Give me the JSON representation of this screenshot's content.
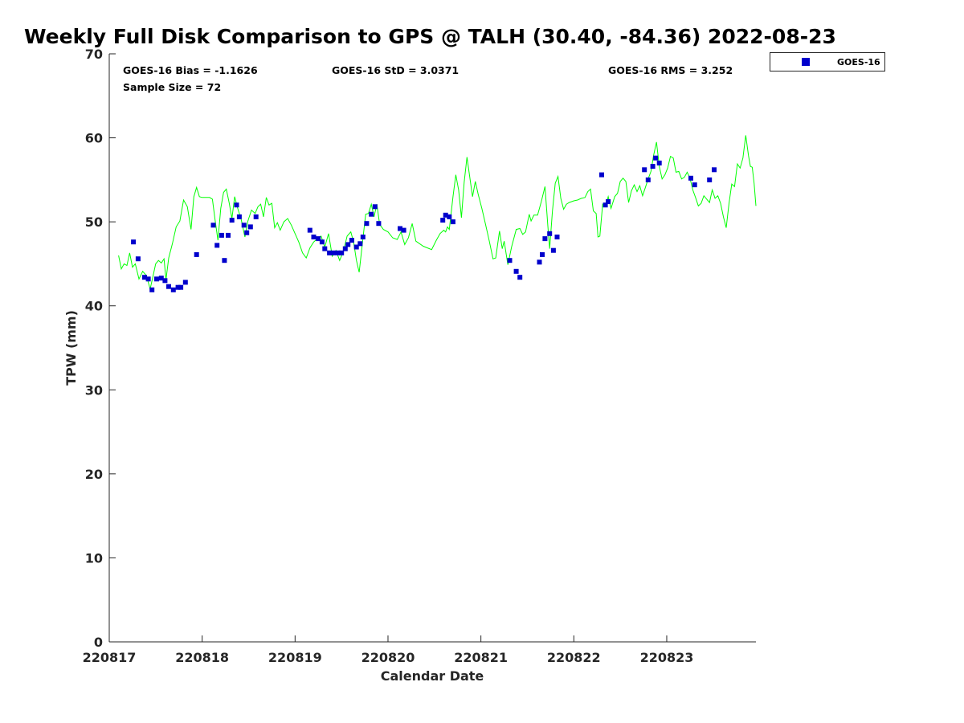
{
  "chart_data": {
    "type": "scatter",
    "title": "Weekly Full Disk Comparison to GPS @ TALH (30.40, -84.36) 2022-08-23",
    "xlabel": "Calendar Date",
    "ylabel": "TPW (mm)",
    "xlim": [
      0,
      6.96
    ],
    "ylim": [
      0,
      70
    ],
    "yticks": [
      0,
      10,
      20,
      30,
      40,
      50,
      60,
      70
    ],
    "xticks": [
      {
        "value": 0,
        "label": "220817"
      },
      {
        "value": 1,
        "label": "220818"
      },
      {
        "value": 2,
        "label": "220819"
      },
      {
        "value": 3,
        "label": "220820"
      },
      {
        "value": 4,
        "label": "220821"
      },
      {
        "value": 5,
        "label": "220822"
      },
      {
        "value": 6,
        "label": "220823"
      }
    ],
    "x_units": "days since 220817",
    "grid": false,
    "legend_position": "top-right",
    "stats": {
      "bias": "GOES-16 Bias = -1.1626",
      "std": "GOES-16 StD = 3.0371",
      "rms": "GOES-16 RMS = 3.252",
      "sample": "Sample Size = 72"
    },
    "series": [
      {
        "name": "GOES-16",
        "kind": "scatter",
        "color": "#0000cc",
        "points": [
          [
            0.26,
            47.6
          ],
          [
            0.31,
            45.6
          ],
          [
            0.38,
            43.4
          ],
          [
            0.42,
            43.2
          ],
          [
            0.46,
            41.9
          ],
          [
            0.51,
            43.2
          ],
          [
            0.56,
            43.3
          ],
          [
            0.6,
            43.0
          ],
          [
            0.64,
            42.3
          ],
          [
            0.69,
            41.9
          ],
          [
            0.74,
            42.2
          ],
          [
            0.77,
            42.2
          ],
          [
            0.82,
            42.8
          ],
          [
            0.94,
            46.1
          ],
          [
            1.12,
            49.6
          ],
          [
            1.16,
            47.2
          ],
          [
            1.21,
            48.4
          ],
          [
            1.24,
            45.4
          ],
          [
            1.28,
            48.4
          ],
          [
            1.32,
            50.2
          ],
          [
            1.37,
            52.0
          ],
          [
            1.4,
            50.6
          ],
          [
            1.45,
            49.6
          ],
          [
            1.48,
            48.7
          ],
          [
            1.52,
            49.4
          ],
          [
            1.58,
            50.6
          ],
          [
            2.16,
            49.0
          ],
          [
            2.2,
            48.2
          ],
          [
            2.25,
            48.0
          ],
          [
            2.29,
            47.6
          ],
          [
            2.32,
            46.8
          ],
          [
            2.37,
            46.3
          ],
          [
            2.41,
            46.3
          ],
          [
            2.46,
            46.3
          ],
          [
            2.5,
            46.3
          ],
          [
            2.54,
            46.8
          ],
          [
            2.57,
            47.3
          ],
          [
            2.61,
            47.8
          ],
          [
            2.66,
            47.0
          ],
          [
            2.7,
            47.4
          ],
          [
            2.73,
            48.2
          ],
          [
            2.77,
            49.8
          ],
          [
            2.82,
            50.9
          ],
          [
            2.86,
            51.8
          ],
          [
            2.9,
            49.8
          ],
          [
            3.13,
            49.2
          ],
          [
            3.17,
            49.0
          ],
          [
            3.59,
            50.2
          ],
          [
            3.62,
            50.8
          ],
          [
            3.66,
            50.6
          ],
          [
            3.7,
            50.0
          ],
          [
            4.31,
            45.4
          ],
          [
            4.38,
            44.1
          ],
          [
            4.42,
            43.4
          ],
          [
            4.63,
            45.2
          ],
          [
            4.66,
            46.1
          ],
          [
            4.69,
            48.0
          ],
          [
            4.74,
            48.6
          ],
          [
            4.78,
            46.6
          ],
          [
            4.82,
            48.2
          ],
          [
            5.3,
            55.6
          ],
          [
            5.34,
            52.0
          ],
          [
            5.37,
            52.4
          ],
          [
            5.76,
            56.2
          ],
          [
            5.8,
            55.0
          ],
          [
            5.85,
            56.6
          ],
          [
            5.88,
            57.6
          ],
          [
            5.92,
            57.0
          ],
          [
            6.26,
            55.2
          ],
          [
            6.3,
            54.4
          ],
          [
            6.46,
            55.0
          ],
          [
            6.51,
            56.2
          ]
        ]
      },
      {
        "kind": "line",
        "color": "#00ff00",
        "points": [
          [
            0.1,
            46.0
          ],
          [
            0.13,
            44.4
          ],
          [
            0.16,
            45.0
          ],
          [
            0.19,
            44.8
          ],
          [
            0.22,
            46.3
          ],
          [
            0.25,
            44.6
          ],
          [
            0.28,
            45.0
          ],
          [
            0.32,
            43.2
          ],
          [
            0.36,
            44.1
          ],
          [
            0.4,
            43.6
          ],
          [
            0.44,
            42.0
          ],
          [
            0.47,
            43.5
          ],
          [
            0.5,
            45.0
          ],
          [
            0.53,
            45.4
          ],
          [
            0.56,
            45.1
          ],
          [
            0.59,
            45.6
          ],
          [
            0.61,
            43.1
          ],
          [
            0.64,
            45.7
          ],
          [
            0.68,
            47.4
          ],
          [
            0.72,
            49.4
          ],
          [
            0.76,
            50.1
          ],
          [
            0.8,
            52.6
          ],
          [
            0.84,
            51.8
          ],
          [
            0.88,
            49.1
          ],
          [
            0.91,
            53.0
          ],
          [
            0.94,
            54.1
          ],
          [
            0.97,
            53.0
          ],
          [
            1.0,
            52.9
          ],
          [
            1.04,
            52.9
          ],
          [
            1.08,
            52.9
          ],
          [
            1.11,
            52.7
          ],
          [
            1.14,
            50.1
          ],
          [
            1.17,
            47.8
          ],
          [
            1.2,
            51.6
          ],
          [
            1.23,
            53.5
          ],
          [
            1.26,
            53.9
          ],
          [
            1.29,
            52.3
          ],
          [
            1.32,
            50.4
          ],
          [
            1.35,
            53.0
          ],
          [
            1.38,
            51.7
          ],
          [
            1.42,
            50.3
          ],
          [
            1.46,
            48.2
          ],
          [
            1.49,
            50.0
          ],
          [
            1.53,
            51.4
          ],
          [
            1.57,
            51.0
          ],
          [
            1.6,
            51.8
          ],
          [
            1.63,
            52.1
          ],
          [
            1.66,
            50.6
          ],
          [
            1.69,
            52.9
          ],
          [
            1.72,
            52.0
          ],
          [
            1.75,
            52.2
          ],
          [
            1.78,
            49.3
          ],
          [
            1.81,
            49.9
          ],
          [
            1.84,
            49.0
          ],
          [
            1.88,
            50.0
          ],
          [
            1.92,
            50.4
          ],
          [
            1.96,
            49.6
          ],
          [
            2.0,
            48.6
          ],
          [
            2.04,
            47.6
          ],
          [
            2.08,
            46.3
          ],
          [
            2.12,
            45.7
          ],
          [
            2.16,
            46.9
          ],
          [
            2.2,
            47.6
          ],
          [
            2.24,
            48.0
          ],
          [
            2.28,
            48.3
          ],
          [
            2.32,
            47.0
          ],
          [
            2.36,
            48.6
          ],
          [
            2.4,
            45.9
          ],
          [
            2.44,
            46.6
          ],
          [
            2.48,
            45.4
          ],
          [
            2.52,
            46.5
          ],
          [
            2.56,
            48.3
          ],
          [
            2.6,
            48.8
          ],
          [
            2.63,
            47.6
          ],
          [
            2.66,
            45.4
          ],
          [
            2.69,
            44.0
          ],
          [
            2.72,
            47.0
          ],
          [
            2.76,
            50.9
          ],
          [
            2.79,
            51.0
          ],
          [
            2.82,
            52.1
          ],
          [
            2.85,
            50.6
          ],
          [
            2.88,
            52.1
          ],
          [
            2.91,
            49.7
          ],
          [
            2.95,
            49.1
          ],
          [
            3.0,
            48.8
          ],
          [
            3.05,
            48.1
          ],
          [
            3.1,
            47.9
          ],
          [
            3.14,
            48.8
          ],
          [
            3.18,
            47.3
          ],
          [
            3.22,
            48.1
          ],
          [
            3.26,
            49.8
          ],
          [
            3.3,
            47.7
          ],
          [
            3.38,
            47.1
          ],
          [
            3.47,
            46.7
          ],
          [
            3.52,
            47.8
          ],
          [
            3.56,
            48.6
          ],
          [
            3.6,
            49.0
          ],
          [
            3.62,
            48.8
          ],
          [
            3.64,
            49.4
          ],
          [
            3.66,
            49.1
          ],
          [
            3.7,
            53.0
          ],
          [
            3.73,
            55.6
          ],
          [
            3.76,
            53.8
          ],
          [
            3.79,
            50.5
          ],
          [
            3.82,
            54.7
          ],
          [
            3.85,
            57.7
          ],
          [
            3.88,
            55.3
          ],
          [
            3.91,
            53.0
          ],
          [
            3.94,
            54.8
          ],
          [
            3.97,
            53.3
          ],
          [
            4.01,
            51.6
          ],
          [
            4.05,
            49.7
          ],
          [
            4.09,
            47.7
          ],
          [
            4.13,
            45.6
          ],
          [
            4.16,
            45.7
          ],
          [
            4.2,
            48.9
          ],
          [
            4.23,
            46.8
          ],
          [
            4.25,
            47.7
          ],
          [
            4.29,
            44.9
          ],
          [
            4.33,
            47.0
          ],
          [
            4.38,
            49.1
          ],
          [
            4.42,
            49.2
          ],
          [
            4.45,
            48.5
          ],
          [
            4.48,
            48.8
          ],
          [
            4.52,
            50.9
          ],
          [
            4.54,
            50.1
          ],
          [
            4.57,
            50.8
          ],
          [
            4.61,
            50.8
          ],
          [
            4.65,
            52.4
          ],
          [
            4.69,
            54.2
          ],
          [
            4.72,
            49.6
          ],
          [
            4.74,
            46.8
          ],
          [
            4.77,
            51.3
          ],
          [
            4.8,
            54.6
          ],
          [
            4.83,
            55.4
          ],
          [
            4.86,
            52.8
          ],
          [
            4.89,
            51.5
          ],
          [
            4.92,
            52.1
          ],
          [
            4.95,
            52.3
          ],
          [
            5.0,
            52.5
          ],
          [
            5.04,
            52.6
          ],
          [
            5.08,
            52.8
          ],
          [
            5.12,
            52.9
          ],
          [
            5.15,
            53.6
          ],
          [
            5.18,
            53.9
          ],
          [
            5.21,
            51.3
          ],
          [
            5.24,
            51.0
          ],
          [
            5.26,
            48.2
          ],
          [
            5.28,
            48.3
          ],
          [
            5.31,
            52.1
          ],
          [
            5.34,
            51.8
          ],
          [
            5.37,
            53.0
          ],
          [
            5.4,
            51.6
          ],
          [
            5.44,
            53.0
          ],
          [
            5.47,
            53.4
          ],
          [
            5.5,
            54.8
          ],
          [
            5.53,
            55.2
          ],
          [
            5.56,
            54.8
          ],
          [
            5.59,
            52.3
          ],
          [
            5.62,
            53.7
          ],
          [
            5.65,
            54.4
          ],
          [
            5.68,
            53.6
          ],
          [
            5.71,
            54.3
          ],
          [
            5.74,
            53.1
          ],
          [
            5.77,
            54.1
          ],
          [
            5.8,
            55.1
          ],
          [
            5.83,
            56.0
          ],
          [
            5.86,
            58.0
          ],
          [
            5.89,
            59.5
          ],
          [
            5.92,
            56.6
          ],
          [
            5.95,
            55.1
          ],
          [
            5.98,
            55.6
          ],
          [
            6.01,
            56.4
          ],
          [
            6.04,
            57.8
          ],
          [
            6.07,
            57.6
          ],
          [
            6.1,
            55.9
          ],
          [
            6.13,
            56.0
          ],
          [
            6.16,
            55.1
          ],
          [
            6.19,
            55.3
          ],
          [
            6.22,
            55.9
          ],
          [
            6.25,
            55.2
          ],
          [
            6.28,
            53.8
          ],
          [
            6.31,
            52.9
          ],
          [
            6.34,
            51.9
          ],
          [
            6.37,
            52.2
          ],
          [
            6.4,
            53.1
          ],
          [
            6.43,
            52.7
          ],
          [
            6.46,
            52.3
          ],
          [
            6.49,
            53.8
          ],
          [
            6.52,
            52.8
          ],
          [
            6.55,
            53.1
          ],
          [
            6.58,
            52.2
          ],
          [
            6.61,
            50.6
          ],
          [
            6.64,
            49.3
          ],
          [
            6.67,
            52.2
          ],
          [
            6.7,
            54.5
          ],
          [
            6.73,
            54.2
          ],
          [
            6.76,
            56.9
          ],
          [
            6.79,
            56.4
          ],
          [
            6.82,
            57.6
          ],
          [
            6.85,
            60.3
          ],
          [
            6.88,
            57.9
          ],
          [
            6.9,
            56.6
          ],
          [
            6.92,
            56.5
          ],
          [
            6.94,
            54.6
          ],
          [
            6.96,
            51.9
          ]
        ]
      }
    ]
  }
}
